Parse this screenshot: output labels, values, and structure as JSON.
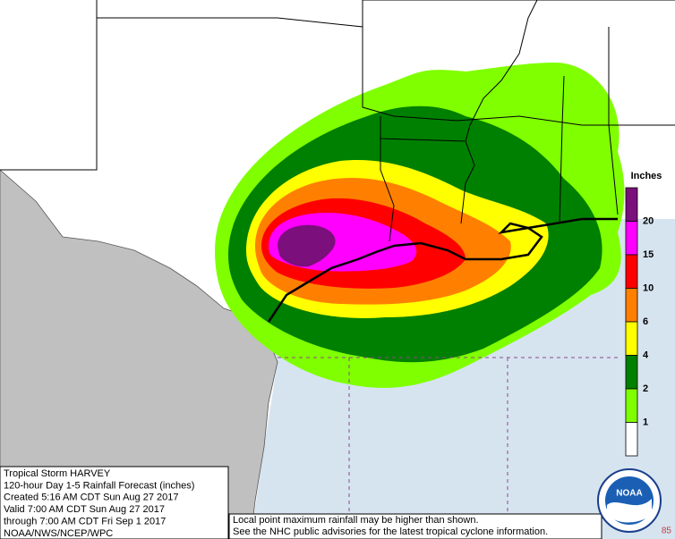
{
  "info": {
    "lines": [
      "Tropical Storm HARVEY",
      "120-hour Day 1-5 Rainfall Forecast (inches)",
      "Created 5:16 AM CDT Sun Aug 27 2017",
      "Valid 7:00 AM CDT Sun Aug 27 2017",
      "through 7:00 AM CDT Fri Sep 1 2017",
      "NOAA/NWS/NCEP/WPC"
    ]
  },
  "footnote": {
    "lines": [
      "Local point maximum rainfall may be higher than shown.",
      "See the NHC public advisories for the latest tropical cyclone information."
    ]
  },
  "legend": {
    "title": "Inches",
    "labels": [
      "20",
      "15",
      "10",
      "6",
      "4",
      "2",
      "1"
    ],
    "colors": [
      "#7b0f7b",
      "#ff00ff",
      "#ff0000",
      "#ff8000",
      "#ffff00",
      "#008000",
      "#80ff00",
      "#ffffff"
    ]
  },
  "logo": "NOAA",
  "corner": "85"
}
